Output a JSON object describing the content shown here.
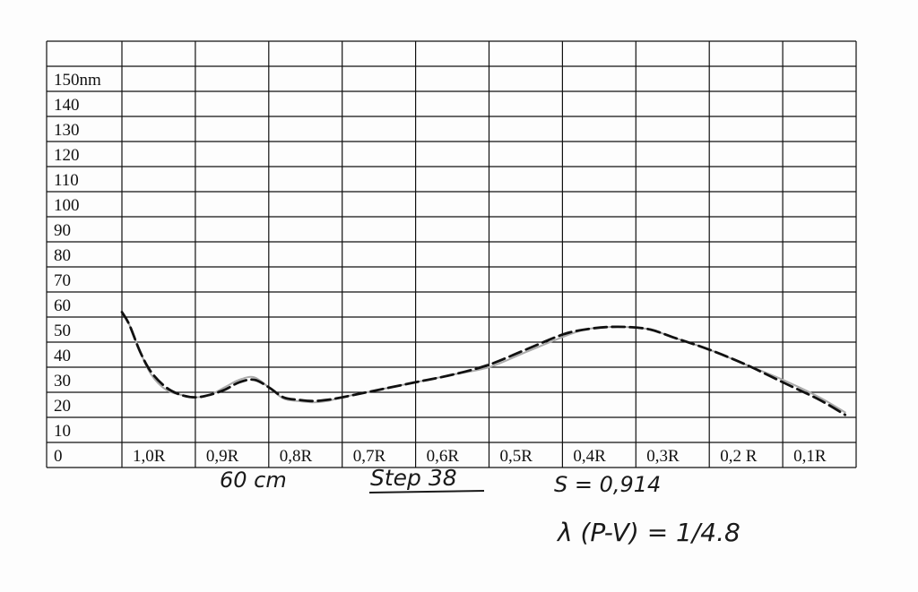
{
  "chart_data": {
    "type": "line",
    "title": "",
    "xlabel": "",
    "ylabel": "",
    "y_tick_labels": [
      "0",
      "10",
      "20",
      "30",
      "40",
      "50",
      "60",
      "70",
      "80",
      "90",
      "100",
      "110",
      "120",
      "130",
      "140",
      "150nm"
    ],
    "x_tick_labels": [
      "1,0R",
      "0,9R",
      "0,8R",
      "0,7R",
      "0,6R",
      "0,5R",
      "0,4R",
      "0,3R",
      "0,2 R",
      "0,1R"
    ],
    "xlim": [
      0,
      10
    ],
    "ylim": [
      0,
      150
    ],
    "grid": true,
    "legend": "none",
    "series": [
      {
        "style": "dashed",
        "color": "#111111",
        "x": [
          0.0,
          0.1,
          0.25,
          0.4,
          0.6,
          0.8,
          1.0,
          1.2,
          1.4,
          1.6,
          1.8,
          2.0,
          2.2,
          2.4,
          2.6,
          2.8,
          3.0,
          3.5,
          4.0,
          4.5,
          5.0,
          5.5,
          6.0,
          6.3,
          6.6,
          6.9,
          7.2,
          7.5,
          8.0,
          8.5,
          9.0,
          9.5,
          9.85
        ],
        "y": [
          52,
          47,
          36,
          28,
          22,
          19,
          18,
          19,
          21,
          24,
          25,
          22,
          18,
          17,
          16.5,
          17,
          18,
          21,
          24,
          27,
          31,
          37,
          43,
          45,
          46,
          46,
          45,
          42,
          37,
          31,
          24,
          17,
          11
        ]
      },
      {
        "style": "solid",
        "color": "#aaaaaa",
        "x": [
          0.0,
          0.1,
          0.25,
          0.4,
          0.6,
          0.8,
          1.0,
          1.2,
          1.4,
          1.6,
          1.8,
          2.0,
          2.2,
          2.4,
          2.6,
          2.8,
          3.0,
          3.5,
          4.0,
          4.5,
          5.0,
          5.5,
          6.0,
          6.3,
          6.6,
          6.9,
          7.2,
          7.5,
          8.0,
          8.5,
          9.0,
          9.5,
          9.85
        ],
        "y": [
          52,
          47,
          36,
          27,
          21,
          19,
          18,
          19,
          22,
          25,
          26,
          22,
          17.5,
          16.5,
          16,
          16.5,
          18,
          21,
          24,
          27,
          30,
          36,
          42,
          45,
          46,
          46,
          45,
          42,
          37,
          31,
          25,
          18,
          12
        ]
      }
    ]
  },
  "handwriting": {
    "distance": "60 cm",
    "step": "Step 38",
    "s_value": "S = 0,914",
    "lambda": "λ (P-V) = 1/4.8"
  }
}
